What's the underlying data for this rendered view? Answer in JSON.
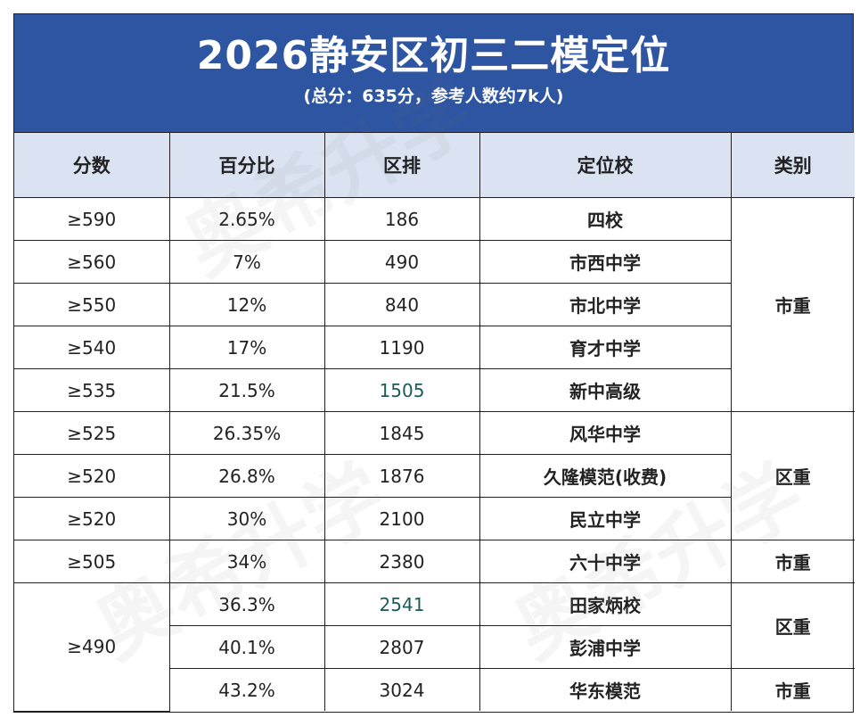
{
  "header": {
    "title": "2026静安区初三二模定位",
    "subtitle": "(总分：635分，参考人数约7k人)"
  },
  "table": {
    "columns": [
      "分数",
      "百分比",
      "区排",
      "定位校",
      "类别"
    ],
    "rows": [
      {
        "score": "≥590",
        "percent": "2.65%",
        "rank": "186",
        "school": "四校"
      },
      {
        "score": "≥560",
        "percent": "7%",
        "rank": "490",
        "school": "市西中学"
      },
      {
        "score": "≥550",
        "percent": "12%",
        "rank": "840",
        "school": "市北中学"
      },
      {
        "score": "≥540",
        "percent": "17%",
        "rank": "1190",
        "school": "育才中学"
      },
      {
        "score": "≥535",
        "percent": "21.5%",
        "rank": "1505",
        "school": "新中高级"
      },
      {
        "score": "≥525",
        "percent": "26.35%",
        "rank": "1845",
        "school": "风华中学"
      },
      {
        "score": "≥520",
        "percent": "26.8%",
        "rank": "1876",
        "school": "久隆模范(收费)"
      },
      {
        "score": "≥520",
        "percent": "30%",
        "rank": "2100",
        "school": "民立中学"
      },
      {
        "score": "≥505",
        "percent": "34%",
        "rank": "2380",
        "school": "六十中学"
      },
      {
        "score": "≥490",
        "percent": "36.3%",
        "rank": "2541",
        "school": "田家炳校"
      },
      {
        "percent": "40.1%",
        "rank": "2807",
        "school": "彭浦中学"
      },
      {
        "percent": "43.2%",
        "rank": "3024",
        "school": "华东模范"
      }
    ],
    "categories": [
      "市重",
      "区重",
      "市重",
      "区重",
      "市重"
    ]
  },
  "watermark": "奥希升学",
  "colors": {
    "title_background": "#2e55a2",
    "header_background": "#dbe3f3",
    "border": "#1f1f1f"
  }
}
